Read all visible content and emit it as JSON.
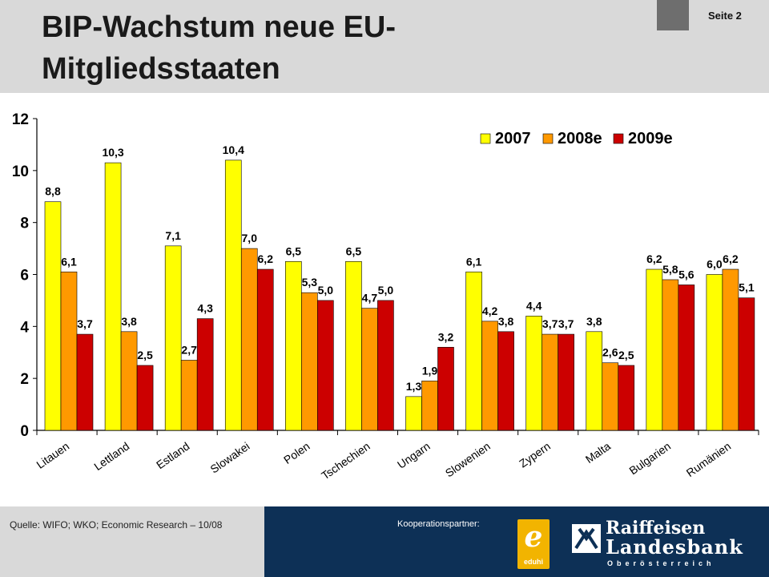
{
  "header": {
    "title": "BIP-Wachstum neue EU-Mitgliedsstaaten",
    "page_label": "Seite 2"
  },
  "footer": {
    "source": "Quelle: WIFO; WKO; Economic Research – 10/08",
    "partner_label": "Kooperationspartner:",
    "eduhi_text": "eduhi",
    "bank_name_line1": "Raiffeisen",
    "bank_name_line2": "Landesbank",
    "bank_region": "Oberösterreich"
  },
  "colors": {
    "s2007": "#ffff00",
    "s2008": "#ff9900",
    "s2009": "#cc0000",
    "header_bg": "#d9d9d9",
    "footer_navy": "#0d3056",
    "eduhi_yellow": "#f2b400"
  },
  "chart_data": {
    "type": "bar",
    "title": "",
    "xlabel": "",
    "ylabel": "",
    "ylim": [
      0,
      12
    ],
    "yticks": [
      "0",
      "2",
      "4",
      "6",
      "8",
      "10",
      "12"
    ],
    "grid": false,
    "legend_position": "top-right",
    "categories": [
      "Litauen",
      "Lettland",
      "Estland",
      "Slowakei",
      "Polen",
      "Tschechien",
      "Ungarn",
      "Slowenien",
      "Zypern",
      "Malta",
      "Bulgarien",
      "Rumänien"
    ],
    "series": [
      {
        "name": "2007",
        "values": [
          8.8,
          10.3,
          7.1,
          10.4,
          6.5,
          6.5,
          1.3,
          6.1,
          4.4,
          3.8,
          6.2,
          6.0
        ],
        "labels": [
          "8,8",
          "10,3",
          "7,1",
          "10,4",
          "6,5",
          "6,5",
          "1,3",
          "6,1",
          "4,4",
          "3,8",
          "6,2",
          "6,0"
        ]
      },
      {
        "name": "2008e",
        "values": [
          6.1,
          3.8,
          2.7,
          7.0,
          5.3,
          4.7,
          1.9,
          4.2,
          3.7,
          2.6,
          5.8,
          6.2
        ],
        "labels": [
          "6,1",
          "3,8",
          "2,7",
          "7,0",
          "5,3",
          "4,7",
          "1,9",
          "4,2",
          "3,7",
          "2,6",
          "5,8",
          "6,2"
        ]
      },
      {
        "name": "2009e",
        "values": [
          3.7,
          2.5,
          4.3,
          6.2,
          5.0,
          5.0,
          3.2,
          3.8,
          3.7,
          2.5,
          5.6,
          5.1
        ],
        "labels": [
          "3,7",
          "2,5",
          "4,3",
          "6,2",
          "5,0",
          "5,0",
          "3,2",
          "3,8",
          "3,7",
          "2,5",
          "5,6",
          "5,1"
        ]
      }
    ]
  }
}
